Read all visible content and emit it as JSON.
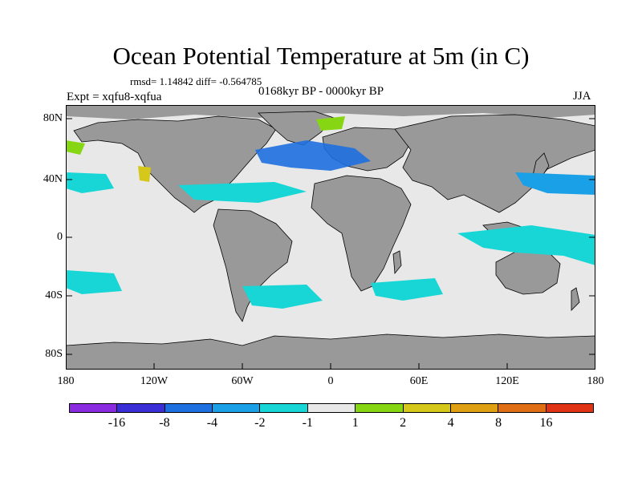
{
  "title": "Ocean Potential Temperature at 5m (in C)",
  "stats": "rmsd= 1.14842 diff= -0.564785",
  "expt": "Expt = xqfu8-xqfua",
  "period": "0168kyr BP - 0000kyr BP",
  "season": "JJA",
  "map": {
    "land_color": "#999999",
    "ocean_neutral_color": "#e8e8e8",
    "y_ticks": [
      "80N",
      "40N",
      "0",
      "40S",
      "80S"
    ],
    "x_ticks": [
      "180",
      "120W",
      "60W",
      "0",
      "60E",
      "120E",
      "180"
    ]
  },
  "colorbar": {
    "colors": [
      "#8a2be2",
      "#3a2fd6",
      "#1e6fe0",
      "#1aa0e6",
      "#18d6d6",
      "#e8e8e8",
      "#86d614",
      "#d6c81a",
      "#e0a014",
      "#e06e14",
      "#e03214"
    ],
    "labels": [
      "-16",
      "-8",
      "-4",
      "-2",
      "-1",
      "1",
      "2",
      "4",
      "8",
      "16"
    ]
  }
}
